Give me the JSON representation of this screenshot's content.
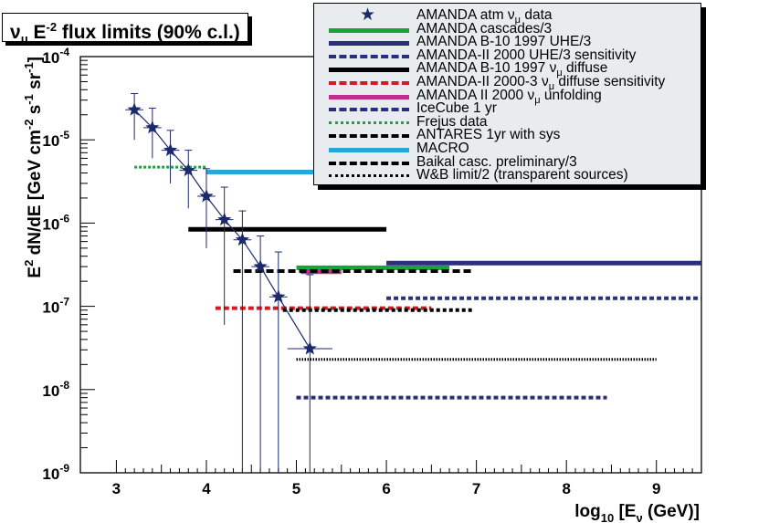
{
  "chart_data": {
    "type": "scatter",
    "title": "ν",
    "title_sub": "μ",
    "title_e": " E",
    "title_exp": "-2",
    "title_rest": " flux limits (90% c.l.)",
    "xlabel": {
      "prefix": "log",
      "sub": "10",
      "mid": " [E",
      "sub2": "ν",
      "suffix": " (GeV)]"
    },
    "ylabel": {
      "main": "E",
      "exp1": "2",
      "mid": " dN/dE [GeV cm",
      "exp2": "-2",
      "mid2": " s",
      "exp3": "-1",
      "mid3": " sr",
      "exp4": "-1",
      "suffix": "]"
    },
    "xlim": [
      2.6,
      9.5
    ],
    "ylim_log10": [
      -9,
      -4
    ],
    "yscale": "log",
    "xticks": [
      3,
      4,
      5,
      6,
      7,
      8,
      9
    ],
    "xtick_labels": [
      "3",
      "4",
      "5",
      "6",
      "7",
      "8",
      "9"
    ],
    "yticks": [
      {
        "exp": -9,
        "base": "10",
        "sup": "-9"
      },
      {
        "exp": -8,
        "base": "10",
        "sup": "-8"
      },
      {
        "exp": -7,
        "base": "10",
        "sup": "-7"
      },
      {
        "exp": -6,
        "base": "10",
        "sup": "-6"
      },
      {
        "exp": -5,
        "base": "10",
        "sup": "-5"
      },
      {
        "exp": -4,
        "base": "10",
        "sup": "-4"
      }
    ],
    "legend_position": "top-right",
    "series": [
      {
        "name": "AMANDA atm ν",
        "name_sub": "μ",
        "name_rest": " data",
        "kind": "points",
        "color": "#1c2a6b",
        "points": [
          {
            "x": 3.2,
            "y": 2.3e-05,
            "yhi": 3.6e-05,
            "ylo": 1e-05,
            "xerr": 0.1
          },
          {
            "x": 3.4,
            "y": 1.4e-05,
            "yhi": 2.4e-05,
            "ylo": 6e-06,
            "xerr": 0.1
          },
          {
            "x": 3.6,
            "y": 7.5e-06,
            "yhi": 1.3e-05,
            "ylo": 3e-06,
            "xerr": 0.1
          },
          {
            "x": 3.8,
            "y": 4.3e-06,
            "yhi": 7.5e-06,
            "ylo": 1.5e-06,
            "xerr": 0.1
          },
          {
            "x": 4.0,
            "y": 2.1e-06,
            "yhi": 4.5e-06,
            "ylo": 5e-07,
            "xerr": 0.1
          },
          {
            "x": 4.2,
            "y": 1.1e-06,
            "yhi": 2.7e-06,
            "ylo": 6e-08,
            "xerr": 0.1
          },
          {
            "x": 4.4,
            "y": 6.3e-07,
            "yhi": 1.4e-06,
            "ylo": 1e-09,
            "xerr": 0.1
          },
          {
            "x": 4.6,
            "y": 3e-07,
            "yhi": 7e-07,
            "ylo": 1e-09,
            "xerr": 0.1
          },
          {
            "x": 4.8,
            "y": 1.3e-07,
            "yhi": 4.5e-07,
            "ylo": 1e-09,
            "xerr": 0.1
          },
          {
            "x": 5.15,
            "y": 3.1e-08,
            "yhi": 2.4e-07,
            "ylo": 1e-09,
            "xerr": 0.25
          }
        ]
      },
      {
        "name": "AMANDA cascades/3",
        "kind": "limit",
        "color": "#1aa33a",
        "dash": "none",
        "width": 5,
        "x": [
          5.0,
          6.7
        ],
        "y": 2.9e-07
      },
      {
        "name": "AMANDA B-10 1997 UHE/3",
        "kind": "limit",
        "color": "#2a2e7c",
        "dash": "none",
        "width": 5,
        "x": [
          6.0,
          9.5
        ],
        "y": 3.3e-07
      },
      {
        "name": "AMANDA-II 2000 UHE/3 sensitivity",
        "kind": "limit",
        "color": "#2a2e7c",
        "dash": "5,3",
        "width": 4,
        "x": [
          6.0,
          9.5
        ],
        "y": 1.25e-07
      },
      {
        "name": "AMANDA B-10 1997 ν",
        "name_sub": "μ",
        "name_rest": " diffuse",
        "kind": "limit",
        "color": "#000000",
        "dash": "none",
        "width": 5,
        "x": [
          3.8,
          6.0
        ],
        "y": 8.4e-07
      },
      {
        "name": "AMANDA-II 2000-3 ν",
        "name_sub": "μ",
        "name_rest": " diffuse sensitivity",
        "kind": "limit",
        "color": "#d21c24",
        "dash": "6,3",
        "width": 4,
        "x": [
          4.1,
          6.5
        ],
        "y": 9.5e-08
      },
      {
        "name": "AMANDA II 2000 ν",
        "name_sub": "μ",
        "name_rest": " unfolding",
        "kind": "limit",
        "color": "#c42d8c",
        "dash": "none",
        "width": 5,
        "x": [
          5.05,
          5.5
        ],
        "y": 2.6e-07
      },
      {
        "name": "IceCube 1 yr",
        "kind": "limit",
        "color": "#2a2e7c",
        "dash": "5,3",
        "width": 4,
        "x": [
          5.0,
          8.45
        ],
        "y": 8e-09
      },
      {
        "name": "Frejus data",
        "kind": "limit",
        "color": "#1aa33a",
        "dash": "3,2",
        "width": 3,
        "x": [
          3.2,
          4.0
        ],
        "y": 4.7e-06
      },
      {
        "name": "ANTARES 1yr with sys",
        "kind": "limit",
        "color": "#000000",
        "dash": "4,3",
        "width": 4,
        "x": [
          4.85,
          6.95
        ],
        "y": 9e-08
      },
      {
        "name": "MACRO",
        "kind": "limit",
        "color": "#27a8d9",
        "dash": "none",
        "width": 5,
        "x": [
          4.0,
          5.2
        ],
        "y": 4.1e-06
      },
      {
        "name": "Baikal casc. preliminary/3",
        "kind": "limit",
        "color": "#000000",
        "dash": "8,4",
        "width": 4,
        "x": [
          4.3,
          6.95
        ],
        "y": 2.65e-07
      },
      {
        "name": "W&B limit/2 (transparent sources)",
        "kind": "limit",
        "color": "#000000",
        "dash": "1.5,1.5",
        "width": 3,
        "x": [
          5.0,
          9.0
        ],
        "y": 2.3e-08
      }
    ]
  }
}
